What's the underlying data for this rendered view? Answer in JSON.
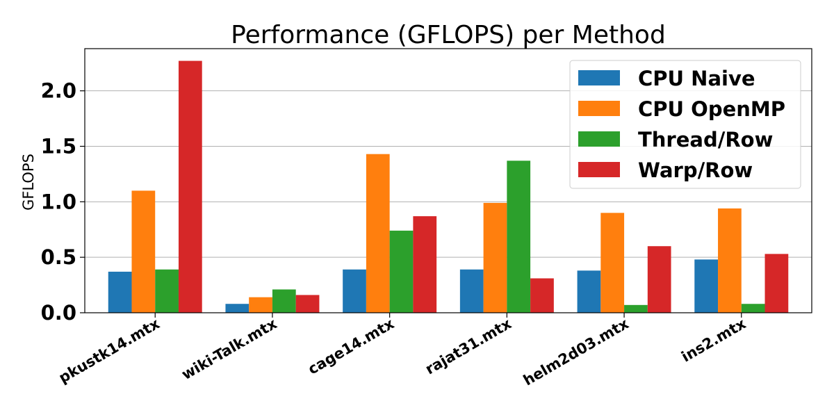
{
  "chart_data": {
    "type": "bar",
    "title": "Performance (GFLOPS) per Method",
    "xlabel": "",
    "ylabel": "GFLOPS",
    "ylim": [
      0,
      2.38
    ],
    "yticks": [
      "0.0",
      "0.5",
      "1.0",
      "1.5",
      "2.0"
    ],
    "grid": "y",
    "legend_position": "top-right",
    "categories": [
      "pkustk14.mtx",
      "wiki-Talk.mtx",
      "cage14.mtx",
      "rajat31.mtx",
      "helm2d03.mtx",
      "ins2.mtx"
    ],
    "series": [
      {
        "name": "CPU Naive",
        "color": "#1f77b4",
        "values": [
          0.37,
          0.08,
          0.39,
          0.39,
          0.38,
          0.48
        ]
      },
      {
        "name": "CPU OpenMP",
        "color": "#ff7f0e",
        "values": [
          1.1,
          0.14,
          1.43,
          0.99,
          0.9,
          0.94
        ]
      },
      {
        "name": "Thread/Row",
        "color": "#2ca02c",
        "values": [
          0.39,
          0.21,
          0.74,
          1.37,
          0.07,
          0.08
        ]
      },
      {
        "name": "Warp/Row",
        "color": "#d62728",
        "values": [
          2.27,
          0.16,
          0.87,
          0.31,
          0.6,
          0.53
        ]
      }
    ]
  }
}
